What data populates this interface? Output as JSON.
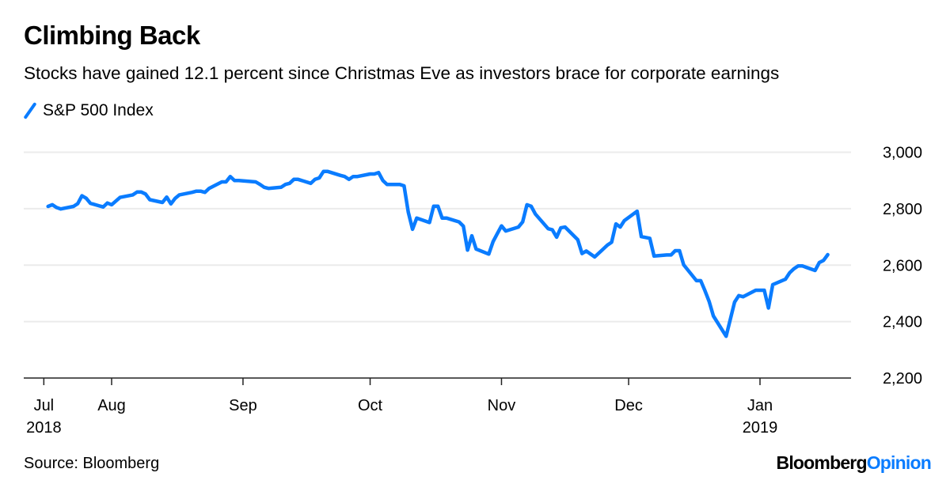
{
  "title": "Climbing Back",
  "subtitle": "Stocks have gained 12.1 percent since Christmas Eve as investors brace for corporate earnings",
  "source": "Source: Bloomberg",
  "logo": {
    "part1": "Bloomberg",
    "part2": "Opinion"
  },
  "chart_data": {
    "type": "line",
    "title": "Climbing Back",
    "xlabel": "",
    "ylabel": "",
    "ylim": [
      2200,
      3000
    ],
    "yticks": [
      {
        "value": 3000,
        "label": "3,000"
      },
      {
        "value": 2800,
        "label": "2,800"
      },
      {
        "value": 2600,
        "label": "2,600"
      },
      {
        "value": 2400,
        "label": "2,400"
      },
      {
        "value": 2200,
        "label": "2,200"
      }
    ],
    "xticks": [
      {
        "date": "2018-07-16",
        "label": "Jul",
        "sublabel": "2018"
      },
      {
        "date": "2018-08-01",
        "label": "Aug",
        "sublabel": ""
      },
      {
        "date": "2018-09-01",
        "label": "Sep",
        "sublabel": ""
      },
      {
        "date": "2018-10-01",
        "label": "Oct",
        "sublabel": ""
      },
      {
        "date": "2018-11-01",
        "label": "Nov",
        "sublabel": ""
      },
      {
        "date": "2018-12-01",
        "label": "Dec",
        "sublabel": ""
      },
      {
        "date": "2019-01-01",
        "label": "Jan",
        "sublabel": "2019"
      }
    ],
    "grid": true,
    "legend_placement": "top-left",
    "color": "#0a7cff",
    "series": [
      {
        "name": "S&P 500 Index",
        "dates": [
          "2018-07-17",
          "2018-07-18",
          "2018-07-19",
          "2018-07-20",
          "2018-07-23",
          "2018-07-24",
          "2018-07-25",
          "2018-07-26",
          "2018-07-27",
          "2018-07-30",
          "2018-07-31",
          "2018-08-01",
          "2018-08-02",
          "2018-08-03",
          "2018-08-06",
          "2018-08-07",
          "2018-08-08",
          "2018-08-09",
          "2018-08-10",
          "2018-08-13",
          "2018-08-14",
          "2018-08-15",
          "2018-08-16",
          "2018-08-17",
          "2018-08-20",
          "2018-08-21",
          "2018-08-22",
          "2018-08-23",
          "2018-08-24",
          "2018-08-27",
          "2018-08-28",
          "2018-08-29",
          "2018-08-30",
          "2018-08-31",
          "2018-09-04",
          "2018-09-05",
          "2018-09-06",
          "2018-09-07",
          "2018-09-10",
          "2018-09-11",
          "2018-09-12",
          "2018-09-13",
          "2018-09-14",
          "2018-09-17",
          "2018-09-18",
          "2018-09-19",
          "2018-09-20",
          "2018-09-21",
          "2018-09-24",
          "2018-09-25",
          "2018-09-26",
          "2018-09-27",
          "2018-09-28",
          "2018-10-01",
          "2018-10-02",
          "2018-10-03",
          "2018-10-04",
          "2018-10-05",
          "2018-10-08",
          "2018-10-09",
          "2018-10-10",
          "2018-10-11",
          "2018-10-12",
          "2018-10-15",
          "2018-10-16",
          "2018-10-17",
          "2018-10-18",
          "2018-10-19",
          "2018-10-22",
          "2018-10-23",
          "2018-10-24",
          "2018-10-25",
          "2018-10-26",
          "2018-10-29",
          "2018-10-30",
          "2018-10-31",
          "2018-11-01",
          "2018-11-02",
          "2018-11-05",
          "2018-11-06",
          "2018-11-07",
          "2018-11-08",
          "2018-11-09",
          "2018-11-12",
          "2018-11-13",
          "2018-11-14",
          "2018-11-15",
          "2018-11-16",
          "2018-11-19",
          "2018-11-20",
          "2018-11-21",
          "2018-11-23",
          "2018-11-26",
          "2018-11-27",
          "2018-11-28",
          "2018-11-29",
          "2018-11-30",
          "2018-12-03",
          "2018-12-04",
          "2018-12-06",
          "2018-12-07",
          "2018-12-10",
          "2018-12-11",
          "2018-12-12",
          "2018-12-13",
          "2018-12-14",
          "2018-12-17",
          "2018-12-18",
          "2018-12-19",
          "2018-12-20",
          "2018-12-21",
          "2018-12-24",
          "2018-12-26",
          "2018-12-27",
          "2018-12-28",
          "2018-12-31",
          "2019-01-02",
          "2019-01-03",
          "2019-01-04",
          "2019-01-07",
          "2019-01-08",
          "2019-01-09",
          "2019-01-10",
          "2019-01-11",
          "2019-01-14",
          "2019-01-15",
          "2019-01-16",
          "2019-01-17"
        ],
        "values": [
          2808,
          2814,
          2804,
          2799,
          2808,
          2818,
          2846,
          2837,
          2819,
          2806,
          2820,
          2814,
          2827,
          2840,
          2849,
          2859,
          2859,
          2852,
          2832,
          2822,
          2841,
          2817,
          2837,
          2849,
          2858,
          2862,
          2862,
          2858,
          2872,
          2895,
          2895,
          2914,
          2900,
          2900,
          2895,
          2886,
          2876,
          2872,
          2876,
          2886,
          2890,
          2904,
          2904,
          2890,
          2904,
          2909,
          2932,
          2932,
          2918,
          2914,
          2904,
          2914,
          2914,
          2923,
          2923,
          2928,
          2900,
          2886,
          2886,
          2881,
          2788,
          2727,
          2767,
          2751,
          2809,
          2809,
          2767,
          2767,
          2753,
          2738,
          2653,
          2704,
          2657,
          2639,
          2683,
          2711,
          2739,
          2721,
          2735,
          2753,
          2814,
          2809,
          2781,
          2729,
          2725,
          2699,
          2732,
          2735,
          2690,
          2641,
          2650,
          2629,
          2671,
          2681,
          2746,
          2735,
          2758,
          2791,
          2701,
          2695,
          2632,
          2636,
          2636,
          2651,
          2651,
          2601,
          2545,
          2545,
          2510,
          2471,
          2420,
          2348,
          2469,
          2492,
          2488,
          2511,
          2511,
          2448,
          2531,
          2550,
          2573,
          2587,
          2597,
          2597,
          2581,
          2609,
          2617,
          2637
        ]
      }
    ]
  }
}
